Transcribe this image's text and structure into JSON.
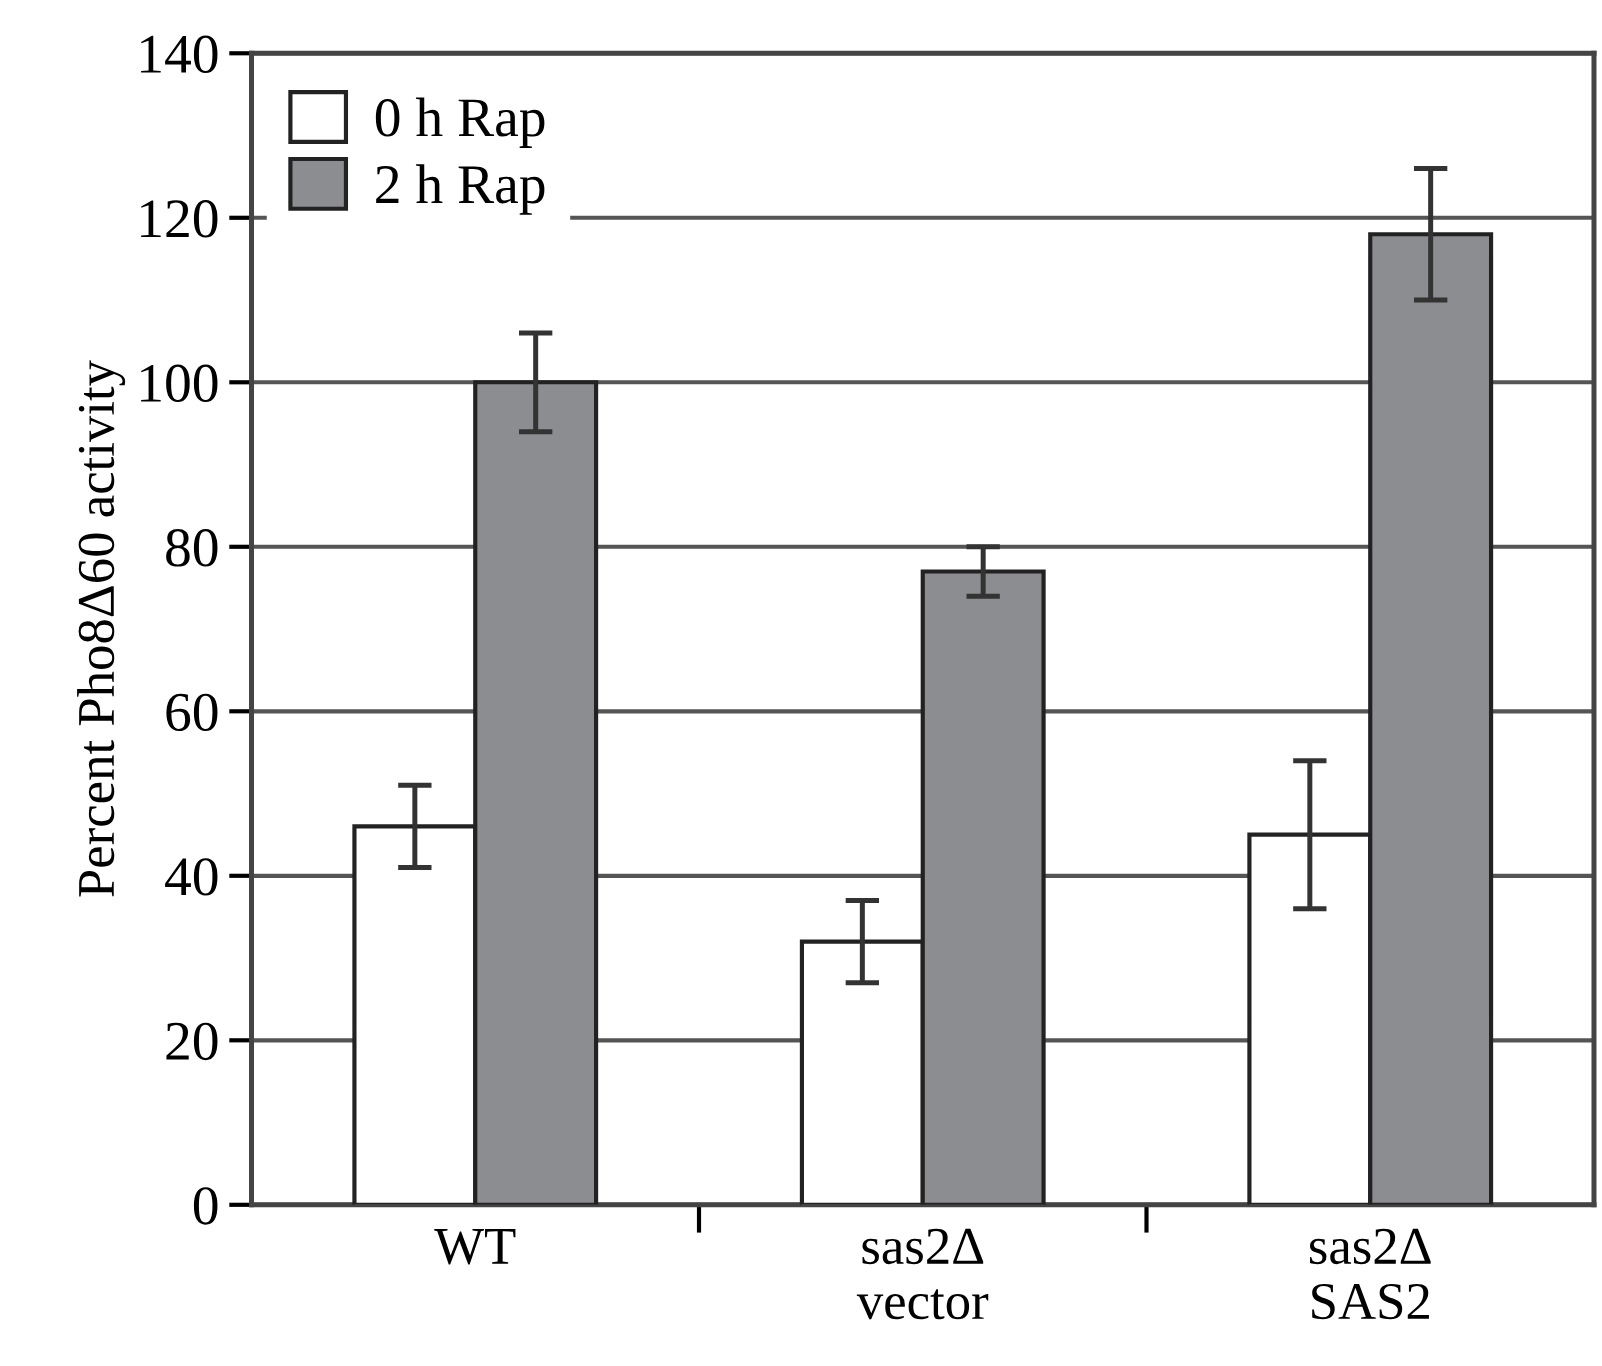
{
  "chart_data": {
    "type": "bar",
    "ylabel": "Percent Pho8Δ60 activity",
    "categories": [
      "WT",
      "sas2Δ\nvector",
      "sas2Δ\nSAS2"
    ],
    "series": [
      {
        "name": "0 h Rap",
        "color": "#ffffff",
        "values": [
          46,
          32,
          45
        ],
        "errors": [
          5,
          5,
          9
        ]
      },
      {
        "name": "2 h Rap",
        "color": "#8c8d90",
        "values": [
          100,
          77,
          118
        ],
        "errors": [
          6,
          3,
          8
        ]
      }
    ],
    "ylim": [
      0,
      140
    ],
    "yticks": [
      0,
      20,
      40,
      60,
      80,
      100,
      120,
      140
    ],
    "grid": "y",
    "legend": "top left"
  }
}
